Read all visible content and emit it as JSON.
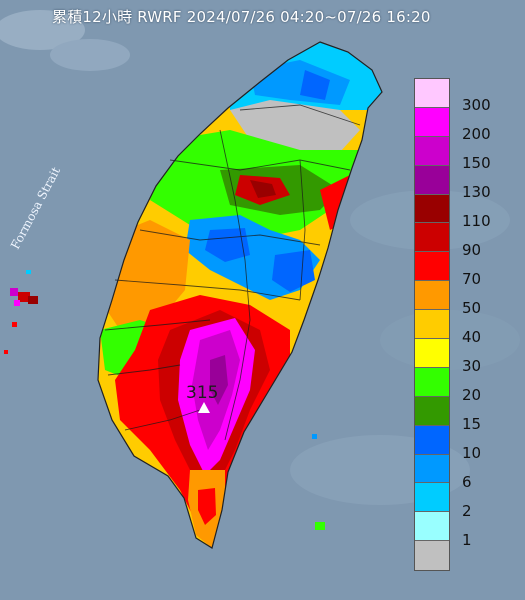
{
  "title": "累積12小時 RWRF 2024/07/26 04:20~07/26 16:20",
  "strait_label": "Formosa Strait",
  "peak": {
    "value": "315",
    "icon": "triangle-marker-icon"
  },
  "legend": {
    "labels": [
      "300",
      "200",
      "150",
      "130",
      "110",
      "90",
      "70",
      "50",
      "40",
      "30",
      "20",
      "15",
      "10",
      "6",
      "2",
      "1"
    ],
    "colors": [
      "#ffc8ff",
      "#ff00ff",
      "#cc00cc",
      "#990099",
      "#990000",
      "#cc0000",
      "#ff0000",
      "#ff9900",
      "#ffcc00",
      "#ffff00",
      "#33ff00",
      "#339900",
      "#0066ff",
      "#0099ff",
      "#00ccff",
      "#99ffff",
      "#c0c0c0"
    ]
  }
}
